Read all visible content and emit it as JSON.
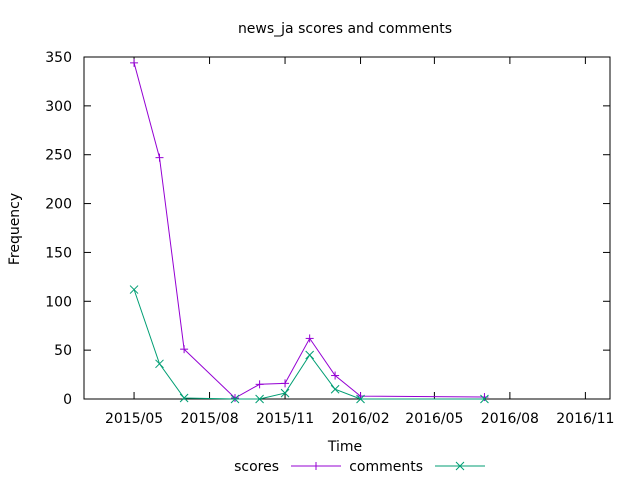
{
  "chart_data": {
    "type": "line",
    "title": "news_ja scores and comments",
    "xlabel": "Time",
    "ylabel": "Frequency",
    "ylim": [
      0,
      350
    ],
    "yticks": [
      0,
      50,
      100,
      150,
      200,
      250,
      300,
      350
    ],
    "xlim": [
      "2015-03-01",
      "2016-12-01"
    ],
    "xticks": [
      {
        "date": "2015-05-01",
        "label": "2015/05"
      },
      {
        "date": "2015-08-01",
        "label": "2015/08"
      },
      {
        "date": "2015-11-01",
        "label": "2015/11"
      },
      {
        "date": "2016-02-01",
        "label": "2016/02"
      },
      {
        "date": "2016-05-01",
        "label": "2016/05"
      },
      {
        "date": "2016-08-01",
        "label": "2016/08"
      },
      {
        "date": "2016-11-01",
        "label": "2016/11"
      }
    ],
    "grid": false,
    "legend_position": "bottom-center",
    "series": [
      {
        "name": "scores",
        "color": "#9400d3",
        "marker": "plus",
        "points": [
          {
            "x": "2015-05-01",
            "y": 344
          },
          {
            "x": "2015-06-01",
            "y": 247
          },
          {
            "x": "2015-07-01",
            "y": 51
          },
          {
            "x": "2015-09-01",
            "y": 1
          },
          {
            "x": "2015-10-01",
            "y": 15
          },
          {
            "x": "2015-11-01",
            "y": 16
          },
          {
            "x": "2015-12-01",
            "y": 62
          },
          {
            "x": "2016-01-01",
            "y": 24
          },
          {
            "x": "2016-02-01",
            "y": 3
          },
          {
            "x": "2016-07-01",
            "y": 2
          }
        ]
      },
      {
        "name": "comments",
        "color": "#009e73",
        "marker": "cross",
        "points": [
          {
            "x": "2015-05-01",
            "y": 112
          },
          {
            "x": "2015-06-01",
            "y": 36
          },
          {
            "x": "2015-07-01",
            "y": 1
          },
          {
            "x": "2015-09-01",
            "y": 0
          },
          {
            "x": "2015-10-01",
            "y": 0
          },
          {
            "x": "2015-11-01",
            "y": 6
          },
          {
            "x": "2015-12-01",
            "y": 45
          },
          {
            "x": "2016-01-01",
            "y": 10
          },
          {
            "x": "2016-02-01",
            "y": 0
          },
          {
            "x": "2016-07-01",
            "y": 0
          }
        ]
      }
    ]
  }
}
